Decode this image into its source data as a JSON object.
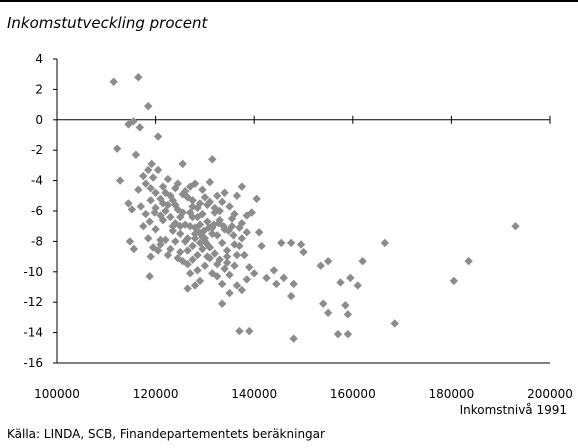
{
  "chart_data": {
    "type": "scatter",
    "title": "Inkomstutveckling procent",
    "xlabel": "Inkomstnivå 1991",
    "ylabel": "",
    "source": "Källa: LINDA, SCB, Finandepartementets beräkningar",
    "xlim": [
      100000,
      200000
    ],
    "ylim": [
      -16,
      4
    ],
    "x_ticks": [
      "100000",
      "120000",
      "140000",
      "160000",
      "180000",
      "200000"
    ],
    "y_ticks": [
      "4",
      "2",
      "0",
      "-2",
      "-4",
      "-6",
      "-8",
      "-10",
      "-12",
      "-14",
      "-16"
    ],
    "grid": false,
    "marker": "diamond",
    "marker_color": "#8c8c8c",
    "points": [
      [
        111500,
        2.5
      ],
      [
        116500,
        2.8
      ],
      [
        118500,
        0.9
      ],
      [
        115500,
        -0.1
      ],
      [
        114500,
        -0.3
      ],
      [
        116800,
        -0.5
      ],
      [
        112200,
        -1.9
      ],
      [
        120500,
        -1.1
      ],
      [
        116000,
        -2.3
      ],
      [
        112800,
        -4.0
      ],
      [
        114500,
        -5.5
      ],
      [
        115200,
        -5.9
      ],
      [
        114800,
        -8.0
      ],
      [
        115600,
        -8.5
      ],
      [
        118800,
        -10.3
      ],
      [
        125500,
        -2.9
      ],
      [
        131500,
        -2.6
      ],
      [
        137500,
        -4.4
      ],
      [
        140500,
        -5.2
      ],
      [
        138500,
        -7.4
      ],
      [
        141000,
        -7.4
      ],
      [
        141500,
        -8.3
      ],
      [
        145500,
        -8.1
      ],
      [
        147500,
        -8.1
      ],
      [
        149500,
        -8.2
      ],
      [
        150000,
        -8.7
      ],
      [
        144000,
        -9.9
      ],
      [
        137500,
        -11.2
      ],
      [
        133500,
        -12.1
      ],
      [
        142500,
        -10.4
      ],
      [
        144500,
        -10.8
      ],
      [
        146000,
        -10.4
      ],
      [
        148000,
        -10.8
      ],
      [
        147500,
        -11.6
      ],
      [
        153500,
        -9.6
      ],
      [
        155000,
        -9.3
      ],
      [
        159500,
        -10.4
      ],
      [
        161000,
        -10.9
      ],
      [
        162000,
        -9.3
      ],
      [
        166500,
        -8.1
      ],
      [
        154000,
        -12.1
      ],
      [
        155000,
        -12.7
      ],
      [
        158500,
        -12.2
      ],
      [
        159000,
        -12.8
      ],
      [
        157000,
        -14.1
      ],
      [
        159000,
        -14.1
      ],
      [
        148000,
        -14.4
      ],
      [
        137000,
        -13.9
      ],
      [
        139000,
        -13.9
      ],
      [
        168500,
        -13.4
      ],
      [
        180500,
        -10.6
      ],
      [
        183500,
        -9.3
      ],
      [
        193000,
        -7.0
      ],
      [
        157500,
        -10.7
      ],
      [
        134500,
        -9.4
      ],
      [
        128000,
        -7.5
      ],
      [
        127500,
        -6.4
      ],
      [
        125000,
        -7.0
      ],
      [
        130000,
        -7.8
      ],
      [
        126500,
        -8.6
      ],
      [
        122000,
        -6.0
      ],
      [
        119000,
        -4.5
      ],
      [
        118000,
        -4.2
      ],
      [
        120500,
        -3.3
      ],
      [
        119200,
        -2.9
      ],
      [
        121000,
        -5.2
      ],
      [
        123000,
        -5.0
      ],
      [
        124000,
        -5.6
      ],
      [
        121500,
        -6.6
      ],
      [
        120000,
        -7.2
      ],
      [
        118500,
        -7.8
      ],
      [
        119500,
        -8.4
      ],
      [
        122500,
        -8.9
      ],
      [
        124000,
        -8.0
      ],
      [
        123500,
        -7.3
      ],
      [
        125500,
        -6.1
      ],
      [
        126500,
        -5.1
      ],
      [
        127000,
        -4.4
      ],
      [
        128000,
        -4.2
      ],
      [
        129500,
        -4.6
      ],
      [
        131000,
        -4.1
      ],
      [
        130500,
        -5.6
      ],
      [
        132000,
        -6.1
      ],
      [
        133000,
        -6.6
      ],
      [
        131500,
        -7.1
      ],
      [
        132500,
        -7.6
      ],
      [
        133500,
        -8.1
      ],
      [
        134500,
        -8.6
      ],
      [
        131000,
        -9.1
      ],
      [
        130000,
        -9.6
      ],
      [
        128500,
        -9.9
      ],
      [
        127000,
        -10.1
      ],
      [
        125500,
        -9.3
      ],
      [
        126000,
        -8.0
      ],
      [
        129000,
        -6.9
      ],
      [
        129500,
        -6.2
      ],
      [
        130500,
        -6.7
      ],
      [
        128500,
        -5.8
      ],
      [
        127500,
        -5.3
      ],
      [
        126000,
        -4.7
      ],
      [
        124500,
        -4.2
      ],
      [
        122500,
        -3.9
      ],
      [
        121500,
        -4.4
      ],
      [
        123000,
        -6.4
      ],
      [
        124000,
        -6.8
      ],
      [
        125000,
        -7.5
      ],
      [
        126500,
        -7.8
      ],
      [
        127500,
        -8.3
      ],
      [
        128500,
        -8.9
      ],
      [
        129500,
        -8.5
      ],
      [
        130500,
        -8.2
      ],
      [
        132000,
        -8.8
      ],
      [
        133000,
        -9.2
      ],
      [
        134000,
        -9.8
      ],
      [
        135000,
        -10.2
      ],
      [
        136000,
        -9.6
      ],
      [
        136500,
        -8.9
      ],
      [
        137000,
        -8.3
      ],
      [
        137500,
        -7.8
      ],
      [
        138000,
        -8.9
      ],
      [
        139000,
        -9.7
      ],
      [
        140000,
        -10.1
      ],
      [
        138500,
        -10.5
      ],
      [
        136500,
        -10.9
      ],
      [
        135000,
        -11.4
      ],
      [
        133500,
        -10.8
      ],
      [
        132500,
        -10.3
      ],
      [
        131500,
        -10.1
      ],
      [
        129000,
        -10.6
      ],
      [
        128000,
        -10.9
      ],
      [
        126500,
        -11.1
      ],
      [
        134000,
        -7.2
      ],
      [
        135500,
        -6.5
      ],
      [
        135000,
        -5.7
      ],
      [
        136000,
        -6.2
      ],
      [
        133500,
        -5.4
      ],
      [
        132500,
        -5.0
      ],
      [
        134000,
        -4.8
      ],
      [
        136500,
        -5.0
      ],
      [
        137500,
        -6.8
      ],
      [
        138500,
        -6.3
      ],
      [
        139500,
        -6.1
      ],
      [
        118000,
        -6.2
      ],
      [
        117000,
        -5.7
      ],
      [
        116500,
        -4.6
      ],
      [
        117500,
        -3.7
      ],
      [
        118500,
        -3.3
      ],
      [
        119500,
        -3.8
      ],
      [
        120000,
        -4.8
      ],
      [
        121000,
        -7.9
      ],
      [
        119000,
        -9.0
      ],
      [
        120500,
        -8.6
      ],
      [
        117500,
        -7.0
      ],
      [
        118800,
        -6.7
      ],
      [
        119800,
        -6.1
      ],
      [
        121500,
        -5.5
      ],
      [
        122500,
        -5.6
      ],
      [
        123500,
        -7.0
      ],
      [
        125000,
        -6.4
      ],
      [
        126000,
        -6.9
      ],
      [
        127000,
        -7.0
      ],
      [
        128000,
        -7.1
      ],
      [
        128800,
        -7.4
      ],
      [
        129800,
        -7.3
      ],
      [
        130800,
        -7.1
      ],
      [
        131800,
        -6.9
      ],
      [
        132800,
        -6.8
      ],
      [
        133800,
        -7.0
      ],
      [
        134800,
        -7.3
      ],
      [
        135800,
        -7.6
      ],
      [
        130000,
        -8.0
      ],
      [
        131000,
        -8.4
      ],
      [
        129000,
        -8.1
      ],
      [
        127500,
        -9.2
      ],
      [
        126500,
        -9.5
      ],
      [
        125000,
        -8.7
      ],
      [
        124500,
        -9.1
      ],
      [
        123000,
        -8.5
      ],
      [
        122000,
        -7.9
      ],
      [
        121000,
        -8.2
      ],
      [
        124000,
        -4.5
      ],
      [
        125500,
        -4.9
      ],
      [
        127500,
        -5.7
      ],
      [
        128500,
        -6.4
      ],
      [
        129000,
        -5.5
      ],
      [
        130000,
        -5.1
      ],
      [
        131000,
        -5.4
      ],
      [
        132000,
        -5.8
      ],
      [
        133000,
        -6.0
      ],
      [
        127000,
        -6.1
      ],
      [
        124500,
        -5.9
      ],
      [
        123500,
        -5.3
      ],
      [
        122000,
        -4.8
      ],
      [
        120000,
        -5.8
      ],
      [
        119000,
        -5.3
      ],
      [
        121000,
        -6.3
      ],
      [
        130500,
        -9.0
      ],
      [
        132500,
        -9.5
      ],
      [
        134500,
        -9.0
      ],
      [
        136000,
        -8.2
      ],
      [
        137000,
        -7.1
      ],
      [
        135500,
        -7.0
      ],
      [
        129500,
        -7.7
      ],
      [
        128000,
        -7.8
      ],
      [
        131500,
        -7.5
      ]
    ]
  }
}
